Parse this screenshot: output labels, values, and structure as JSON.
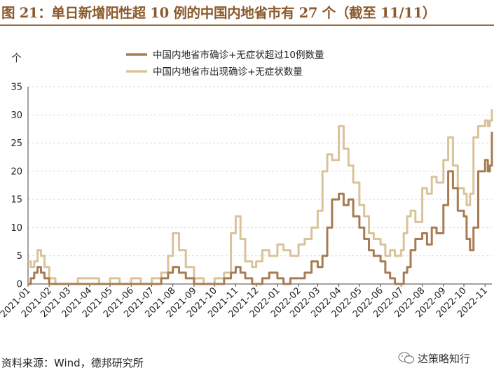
{
  "header": {
    "title": "图 21：单日新增阳性超 10 例的中国内地省市有 27 个（截至 11/11）"
  },
  "footer": {
    "source": "资料来源：Wind，德邦研究所",
    "watermark": "达策略知行",
    "watermark_icon": "wechat-icon"
  },
  "chart_data": {
    "type": "line",
    "title": "",
    "xlabel": "",
    "ylabel": "个",
    "ylim": [
      0,
      35
    ],
    "yticks": [
      "0",
      "5",
      "10",
      "15",
      "20",
      "25",
      "30",
      "35"
    ],
    "xticks": [
      "2021-01",
      "2021-02",
      "2021-03",
      "2021-04",
      "2021-05",
      "2021-06",
      "2021-07",
      "2021-08",
      "2021-09",
      "2021-10",
      "2021-11",
      "2021-12",
      "2022-01",
      "2022-02",
      "2022-03",
      "2022-04",
      "2022-05",
      "2022-06",
      "2022-07",
      "2022-08",
      "2022-09",
      "2022-10",
      "2022-11"
    ],
    "grid": true,
    "legend_position": "top-center",
    "series": [
      {
        "name": "中国内地省市确诊+无症状超过10例数量",
        "color": "#A77C52",
        "x": [
          "2021-01-01",
          "2021-01-05",
          "2021-01-10",
          "2021-01-15",
          "2021-01-20",
          "2021-01-25",
          "2021-02-01",
          "2021-02-10",
          "2021-02-20",
          "2021-03-01",
          "2021-03-15",
          "2021-04-01",
          "2021-04-15",
          "2021-05-01",
          "2021-05-15",
          "2021-06-01",
          "2021-06-15",
          "2021-07-01",
          "2021-07-15",
          "2021-07-25",
          "2021-08-01",
          "2021-08-10",
          "2021-08-20",
          "2021-09-01",
          "2021-09-15",
          "2021-10-01",
          "2021-10-15",
          "2021-10-25",
          "2021-11-01",
          "2021-11-08",
          "2021-11-15",
          "2021-11-25",
          "2021-12-01",
          "2021-12-10",
          "2021-12-20",
          "2022-01-01",
          "2022-01-10",
          "2022-01-20",
          "2022-02-01",
          "2022-02-10",
          "2022-02-20",
          "2022-03-01",
          "2022-03-08",
          "2022-03-15",
          "2022-03-22",
          "2022-04-01",
          "2022-04-08",
          "2022-04-15",
          "2022-04-22",
          "2022-05-01",
          "2022-05-08",
          "2022-05-15",
          "2022-05-22",
          "2022-06-01",
          "2022-06-08",
          "2022-06-15",
          "2022-06-22",
          "2022-07-01",
          "2022-07-05",
          "2022-07-10",
          "2022-07-15",
          "2022-07-22",
          "2022-08-01",
          "2022-08-08",
          "2022-08-15",
          "2022-08-22",
          "2022-09-01",
          "2022-09-08",
          "2022-09-15",
          "2022-09-22",
          "2022-10-01",
          "2022-10-05",
          "2022-10-10",
          "2022-10-15",
          "2022-10-22",
          "2022-11-01",
          "2022-11-05",
          "2022-11-08",
          "2022-11-11"
        ],
        "values": [
          0,
          1,
          2,
          3,
          2,
          1,
          0,
          0,
          0,
          0,
          0,
          0,
          0,
          0,
          0,
          0,
          0,
          0,
          1,
          2,
          3,
          2,
          1,
          0,
          0,
          0,
          1,
          2,
          3,
          2,
          1,
          0,
          0,
          1,
          2,
          1,
          0,
          1,
          1,
          2,
          4,
          3,
          5,
          10,
          15,
          16,
          14,
          15,
          12,
          10,
          8,
          6,
          5,
          4,
          2,
          1,
          0,
          0,
          2,
          3,
          6,
          8,
          9,
          7,
          10,
          9,
          14,
          20,
          17,
          13,
          12,
          8,
          6,
          10,
          20,
          22,
          20,
          21,
          27
        ]
      },
      {
        "name": "中国内地省市出现确诊+无症状数量",
        "color": "#D9C39B",
        "x": [
          "2021-01-01",
          "2021-01-05",
          "2021-01-10",
          "2021-01-15",
          "2021-01-20",
          "2021-01-25",
          "2021-02-01",
          "2021-02-10",
          "2021-02-20",
          "2021-03-01",
          "2021-03-15",
          "2021-04-01",
          "2021-04-15",
          "2021-05-01",
          "2021-05-15",
          "2021-06-01",
          "2021-06-15",
          "2021-07-01",
          "2021-07-15",
          "2021-07-25",
          "2021-08-01",
          "2021-08-10",
          "2021-08-20",
          "2021-09-01",
          "2021-09-15",
          "2021-10-01",
          "2021-10-15",
          "2021-10-25",
          "2021-11-01",
          "2021-11-08",
          "2021-11-15",
          "2021-11-25",
          "2021-12-01",
          "2021-12-10",
          "2021-12-20",
          "2022-01-01",
          "2022-01-10",
          "2022-01-20",
          "2022-02-01",
          "2022-02-10",
          "2022-02-20",
          "2022-03-01",
          "2022-03-08",
          "2022-03-15",
          "2022-03-22",
          "2022-04-01",
          "2022-04-08",
          "2022-04-15",
          "2022-04-22",
          "2022-05-01",
          "2022-05-08",
          "2022-05-15",
          "2022-05-22",
          "2022-06-01",
          "2022-06-08",
          "2022-06-15",
          "2022-06-22",
          "2022-07-01",
          "2022-07-05",
          "2022-07-10",
          "2022-07-15",
          "2022-07-22",
          "2022-08-01",
          "2022-08-08",
          "2022-08-15",
          "2022-08-22",
          "2022-09-01",
          "2022-09-08",
          "2022-09-15",
          "2022-09-22",
          "2022-10-01",
          "2022-10-05",
          "2022-10-10",
          "2022-10-15",
          "2022-10-22",
          "2022-11-01",
          "2022-11-05",
          "2022-11-08",
          "2022-11-11"
        ],
        "values": [
          4,
          3,
          4,
          6,
          5,
          3,
          1,
          0,
          0,
          0,
          1,
          1,
          0,
          1,
          0,
          1,
          0,
          1,
          2,
          5,
          9,
          6,
          3,
          1,
          0,
          1,
          2,
          9,
          12,
          8,
          4,
          3,
          4,
          6,
          5,
          7,
          6,
          5,
          7,
          8,
          10,
          13,
          20,
          23,
          22,
          28,
          24,
          21,
          18,
          14,
          12,
          9,
          8,
          7,
          5,
          6,
          5,
          6,
          9,
          12,
          13,
          11,
          17,
          16,
          19,
          18,
          22,
          26,
          21,
          17,
          16,
          14,
          16,
          26,
          28,
          29,
          28,
          29,
          31
        ]
      }
    ]
  }
}
